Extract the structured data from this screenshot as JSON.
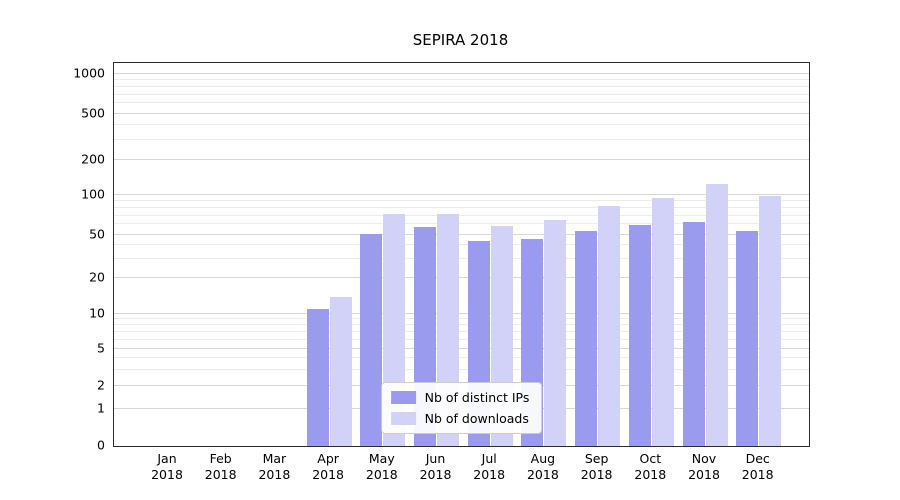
{
  "chart_data": {
    "type": "bar",
    "title": "SEPIRA 2018",
    "categories": [
      "Jan 2018",
      "Feb 2018",
      "Mar 2018",
      "Apr 2018",
      "May 2018",
      "Jun 2018",
      "Jul 2018",
      "Aug 2018",
      "Sep 2018",
      "Oct 2018",
      "Nov 2018",
      "Dec 2018"
    ],
    "series": [
      {
        "name": "Nb of distinct IPs",
        "color": "#9a9aee",
        "values": [
          0,
          0,
          0,
          11,
          51,
          57,
          44,
          46,
          54,
          59,
          63,
          54
        ]
      },
      {
        "name": "Nb of downloads",
        "color": "#d2d2f8",
        "values": [
          0,
          0,
          0,
          14,
          72,
          72,
          58,
          65,
          83,
          95,
          125,
          98
        ]
      }
    ],
    "yscale": "symlog",
    "yticks": [
      0,
      1,
      2,
      5,
      10,
      20,
      50,
      100,
      200,
      500,
      1000
    ],
    "ylim": [
      0,
      1000
    ],
    "grid": true,
    "legend_position": "lower center"
  }
}
